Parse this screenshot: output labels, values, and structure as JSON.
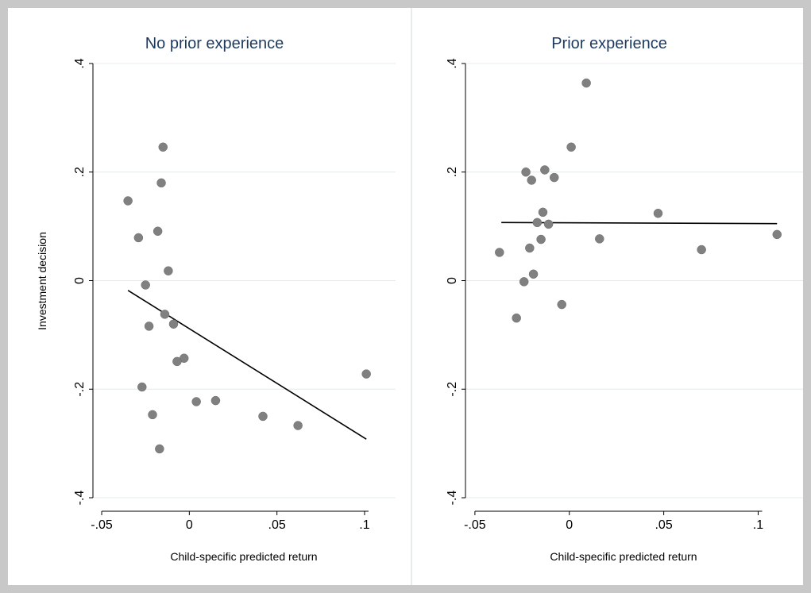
{
  "chart_data": [
    {
      "type": "scatter",
      "title": "No prior experience",
      "xlabel": "Child-specific predicted return",
      "ylabel": "Investment decision",
      "xlim": [
        -0.055,
        0.105
      ],
      "ylim": [
        -0.4,
        0.4
      ],
      "xticks": [
        -0.05,
        0,
        0.05,
        0.1
      ],
      "xtick_labels": [
        "-.05",
        "0",
        ".05",
        ".1"
      ],
      "yticks": [
        -0.4,
        -0.2,
        0,
        0.2,
        0.4
      ],
      "ytick_labels": [
        "-.4",
        "-.2",
        "0",
        ".2",
        ".4"
      ],
      "grid": true,
      "points": [
        [
          -0.035,
          0.147
        ],
        [
          -0.029,
          0.079
        ],
        [
          -0.015,
          0.246
        ],
        [
          -0.016,
          0.18
        ],
        [
          -0.018,
          0.091
        ],
        [
          -0.012,
          0.018
        ],
        [
          -0.025,
          -0.008
        ],
        [
          -0.014,
          -0.062
        ],
        [
          -0.023,
          -0.084
        ],
        [
          -0.009,
          -0.08
        ],
        [
          -0.003,
          -0.143
        ],
        [
          -0.007,
          -0.149
        ],
        [
          -0.027,
          -0.196
        ],
        [
          -0.021,
          -0.247
        ],
        [
          -0.017,
          -0.31
        ],
        [
          0.004,
          -0.223
        ],
        [
          0.015,
          -0.221
        ],
        [
          0.042,
          -0.25
        ],
        [
          0.062,
          -0.267
        ],
        [
          0.101,
          -0.172
        ]
      ],
      "fit_line": {
        "x": [
          -0.035,
          0.101
        ],
        "y": [
          -0.018,
          -0.292
        ]
      }
    },
    {
      "type": "scatter",
      "title": "Prior experience",
      "xlabel": "Child-specific predicted return",
      "ylabel": "",
      "xlim": [
        -0.055,
        0.112
      ],
      "ylim": [
        -0.4,
        0.4
      ],
      "xticks": [
        -0.05,
        0,
        0.05,
        0.1
      ],
      "xtick_labels": [
        "-.05",
        "0",
        ".05",
        ".1"
      ],
      "yticks": [
        -0.4,
        -0.2,
        0,
        0.2,
        0.4
      ],
      "ytick_labels": [
        "-.4",
        "-.2",
        "0",
        ".2",
        ".4"
      ],
      "grid": true,
      "points": [
        [
          0.009,
          0.364
        ],
        [
          0.001,
          0.246
        ],
        [
          -0.023,
          0.2
        ],
        [
          -0.013,
          0.204
        ],
        [
          -0.02,
          0.185
        ],
        [
          -0.008,
          0.19
        ],
        [
          -0.014,
          0.126
        ],
        [
          -0.017,
          0.107
        ],
        [
          -0.011,
          0.104
        ],
        [
          -0.015,
          0.076
        ],
        [
          0.016,
          0.077
        ],
        [
          -0.021,
          0.06
        ],
        [
          -0.037,
          0.052
        ],
        [
          -0.019,
          0.012
        ],
        [
          -0.024,
          -0.002
        ],
        [
          -0.004,
          -0.044
        ],
        [
          -0.028,
          -0.069
        ],
        [
          0.047,
          0.124
        ],
        [
          0.07,
          0.057
        ],
        [
          0.11,
          0.085
        ]
      ],
      "fit_line": {
        "x": [
          -0.036,
          0.11
        ],
        "y": [
          0.107,
          0.105
        ]
      }
    }
  ]
}
